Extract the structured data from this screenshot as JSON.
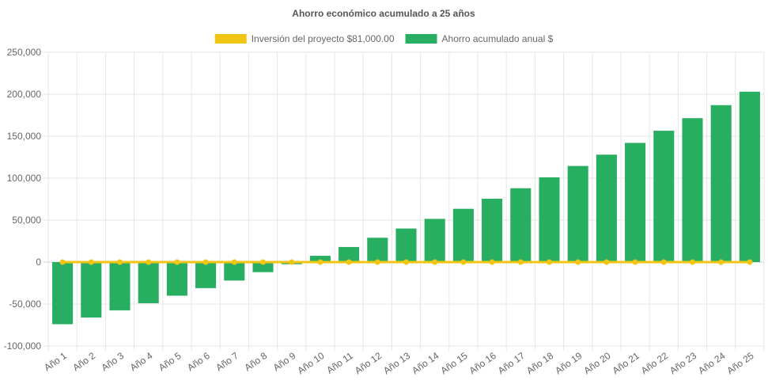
{
  "chart_data": {
    "type": "bar",
    "title": "Ahorro económico acumulado a 25 años",
    "categories": [
      "Año 1",
      "Año 2",
      "Año 3",
      "Año 4",
      "Año 5",
      "Año 6",
      "Año 7",
      "Año 8",
      "Año 9",
      "Año 10",
      "Año 11",
      "Año 12",
      "Año 13",
      "Año 14",
      "Año 15",
      "Año 16",
      "Año 17",
      "Año 18",
      "Año 19",
      "Año 20",
      "Año 21",
      "Año 22",
      "Año 23",
      "Año 24",
      "Año 25"
    ],
    "ylim": [
      -100000,
      250000
    ],
    "yticks": [
      250000,
      200000,
      150000,
      100000,
      50000,
      0,
      -50000,
      -100000
    ],
    "ytick_labels": [
      "250,000",
      "200,000",
      "150,000",
      "100,000",
      "50,000",
      "0",
      "-50,000",
      "-100,000"
    ],
    "grid": true,
    "legend_position": "top",
    "series": [
      {
        "name": "Inversión del proyecto $81,000.00",
        "type": "line",
        "color": "#f0c514",
        "values": [
          0,
          0,
          0,
          0,
          0,
          0,
          0,
          0,
          0,
          0,
          0,
          0,
          0,
          0,
          0,
          0,
          0,
          0,
          0,
          0,
          0,
          0,
          0,
          0,
          0
        ]
      },
      {
        "name": "Ahorro acumulado anual $",
        "type": "bar",
        "color": "#27ae60",
        "values": [
          -74000,
          -66000,
          -57500,
          -49000,
          -40000,
          -31000,
          -22000,
          -12000,
          -2500,
          7500,
          18000,
          29000,
          40000,
          51500,
          63500,
          75500,
          88000,
          101000,
          114500,
          128000,
          142000,
          156500,
          171500,
          187000,
          203000
        ]
      }
    ]
  }
}
